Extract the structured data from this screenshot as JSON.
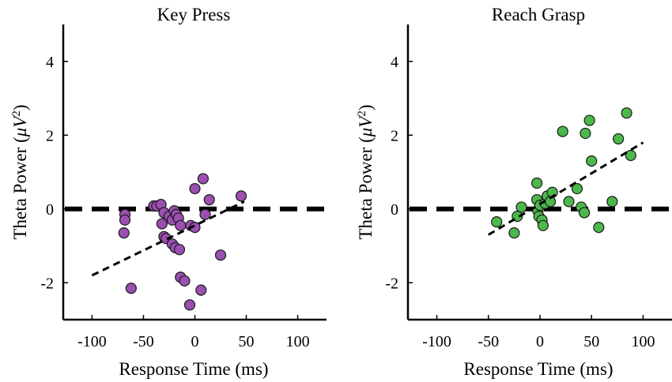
{
  "chart_data": [
    {
      "type": "scatter",
      "title": "Key Press",
      "xlabel": "Response Time (ms)",
      "ylabel_text": "Theta Power (",
      "ylabel_unit": "μV",
      "ylabel_sup": "2",
      "ylabel_close": ")",
      "xlim": [
        -128,
        128
      ],
      "ylim": [
        -3,
        5
      ],
      "xticks": [
        -100,
        -50,
        0,
        50,
        100
      ],
      "xtick_labels": [
        "-100",
        "-50",
        "0",
        "50",
        "100"
      ],
      "yticks": [
        -2,
        0,
        2,
        4
      ],
      "ytick_labels": [
        "-2",
        "0",
        "2",
        "4"
      ],
      "marker_color": "#9b4fb0",
      "reference_line": {
        "y": 0,
        "style": "dashed"
      },
      "fit_line": {
        "x": [
          -100,
          48
        ],
        "y": [
          -1.8,
          0.2
        ]
      },
      "points": [
        {
          "x": -68,
          "y": -0.15
        },
        {
          "x": -68,
          "y": -0.3
        },
        {
          "x": -69,
          "y": -0.65
        },
        {
          "x": -62,
          "y": -2.15
        },
        {
          "x": -40,
          "y": 0.08
        },
        {
          "x": -37,
          "y": 0.08
        },
        {
          "x": -33,
          "y": 0.12
        },
        {
          "x": -30,
          "y": -0.1
        },
        {
          "x": -32,
          "y": -0.4
        },
        {
          "x": -30,
          "y": -0.75
        },
        {
          "x": -28,
          "y": -0.8
        },
        {
          "x": -25,
          "y": -0.2
        },
        {
          "x": -22,
          "y": -0.3
        },
        {
          "x": -20,
          "y": -0.05
        },
        {
          "x": -18,
          "y": -0.15
        },
        {
          "x": -16,
          "y": -0.25
        },
        {
          "x": -14,
          "y": -0.45
        },
        {
          "x": -22,
          "y": -0.95
        },
        {
          "x": -19,
          "y": -1.05
        },
        {
          "x": -15,
          "y": -1.1
        },
        {
          "x": -14,
          "y": -1.85
        },
        {
          "x": -10,
          "y": -1.95
        },
        {
          "x": -5,
          "y": -2.6
        },
        {
          "x": -4,
          "y": -0.45
        },
        {
          "x": 0,
          "y": -0.5
        },
        {
          "x": 0,
          "y": 0.55
        },
        {
          "x": 6,
          "y": -2.2
        },
        {
          "x": 8,
          "y": 0.82
        },
        {
          "x": 10,
          "y": -0.15
        },
        {
          "x": 14,
          "y": 0.25
        },
        {
          "x": 25,
          "y": -1.25
        },
        {
          "x": 45,
          "y": 0.35
        }
      ]
    },
    {
      "type": "scatter",
      "title": "Reach Grasp",
      "xlabel": "Response Time (ms)",
      "ylabel_text": "Theta Power (",
      "ylabel_unit": "μV",
      "ylabel_sup": "2",
      "ylabel_close": ")",
      "xlim": [
        -128,
        128
      ],
      "ylim": [
        -3,
        5
      ],
      "xticks": [
        -100,
        -50,
        0,
        50,
        100
      ],
      "xtick_labels": [
        "-100",
        "-50",
        "0",
        "50",
        "100"
      ],
      "yticks": [
        -2,
        0,
        2,
        4
      ],
      "ytick_labels": [
        "-2",
        "0",
        "2",
        "4"
      ],
      "marker_color": "#4cb84c",
      "reference_line": {
        "y": 0,
        "style": "dashed"
      },
      "fit_line": {
        "x": [
          -50,
          100
        ],
        "y": [
          -0.7,
          1.8
        ]
      },
      "points": [
        {
          "x": -42,
          "y": -0.35
        },
        {
          "x": -25,
          "y": -0.65
        },
        {
          "x": -22,
          "y": -0.2
        },
        {
          "x": -18,
          "y": 0.05
        },
        {
          "x": -3,
          "y": 0.7
        },
        {
          "x": -3,
          "y": 0.25
        },
        {
          "x": -2,
          "y": -0.05
        },
        {
          "x": -1,
          "y": -0.2
        },
        {
          "x": 0,
          "y": 0.1
        },
        {
          "x": 2,
          "y": -0.3
        },
        {
          "x": 3,
          "y": -0.45
        },
        {
          "x": 5,
          "y": 0.15
        },
        {
          "x": 7,
          "y": 0.35
        },
        {
          "x": 10,
          "y": 0.2
        },
        {
          "x": 12,
          "y": 0.45
        },
        {
          "x": 22,
          "y": 2.1
        },
        {
          "x": 28,
          "y": 0.2
        },
        {
          "x": 36,
          "y": 0.55
        },
        {
          "x": 40,
          "y": 0.05
        },
        {
          "x": 43,
          "y": -0.1
        },
        {
          "x": 44,
          "y": 2.05
        },
        {
          "x": 48,
          "y": 2.4
        },
        {
          "x": 50,
          "y": 1.3
        },
        {
          "x": 57,
          "y": -0.5
        },
        {
          "x": 70,
          "y": 0.2
        },
        {
          "x": 76,
          "y": 1.9
        },
        {
          "x": 84,
          "y": 2.6
        },
        {
          "x": 88,
          "y": 1.45
        }
      ]
    }
  ]
}
